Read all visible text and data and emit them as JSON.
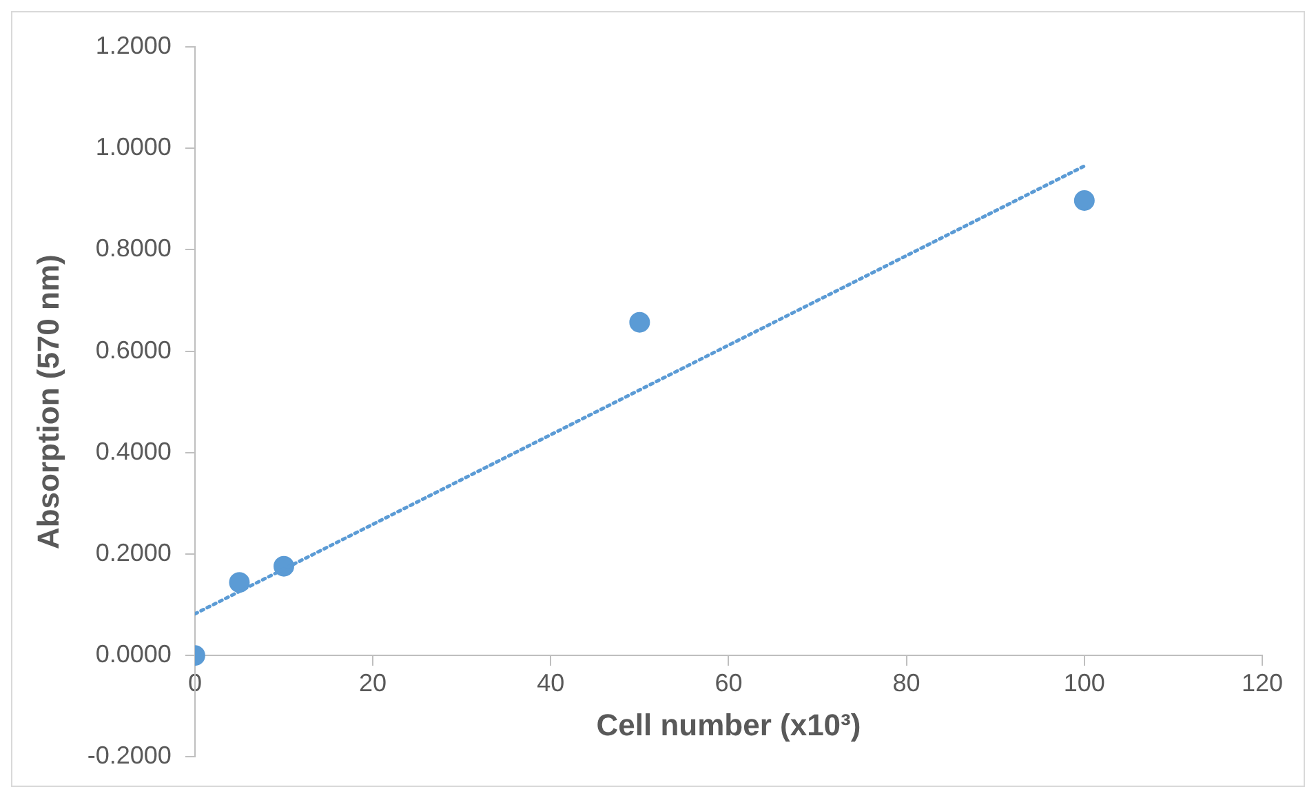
{
  "chart_data": {
    "type": "scatter",
    "xlabel": "Cell number (x10³)",
    "ylabel": "Absorption (570 nm)",
    "xlim": [
      0,
      120
    ],
    "xticks": [
      0,
      20,
      40,
      60,
      80,
      100,
      120
    ],
    "ylim": [
      -0.2,
      1.2
    ],
    "yticks": [
      {
        "value": -0.2,
        "label": "-0.2000"
      },
      {
        "value": 0,
        "label": "0.0000"
      },
      {
        "value": 0.2,
        "label": "0.2000"
      },
      {
        "value": 0.4,
        "label": "0.4000"
      },
      {
        "value": 0.6,
        "label": "0.6000"
      },
      {
        "value": 0.8,
        "label": "0.8000"
      },
      {
        "value": 1,
        "label": "1.0000"
      },
      {
        "value": 1.2,
        "label": "1.2000"
      }
    ],
    "grid": false,
    "legend": false,
    "marker": "circle",
    "series": [
      {
        "color": "#5b9bd5",
        "x": [
          0,
          5,
          10,
          50,
          100
        ],
        "values": [
          0,
          0.144,
          0.176,
          0.657,
          0.897
        ]
      },
      {
        "type": "line",
        "color": "#5b9bd5",
        "line_style": "dotted",
        "marker": "none",
        "x": [
          0,
          100
        ],
        "values": [
          0.082,
          0.965
        ]
      }
    ]
  }
}
